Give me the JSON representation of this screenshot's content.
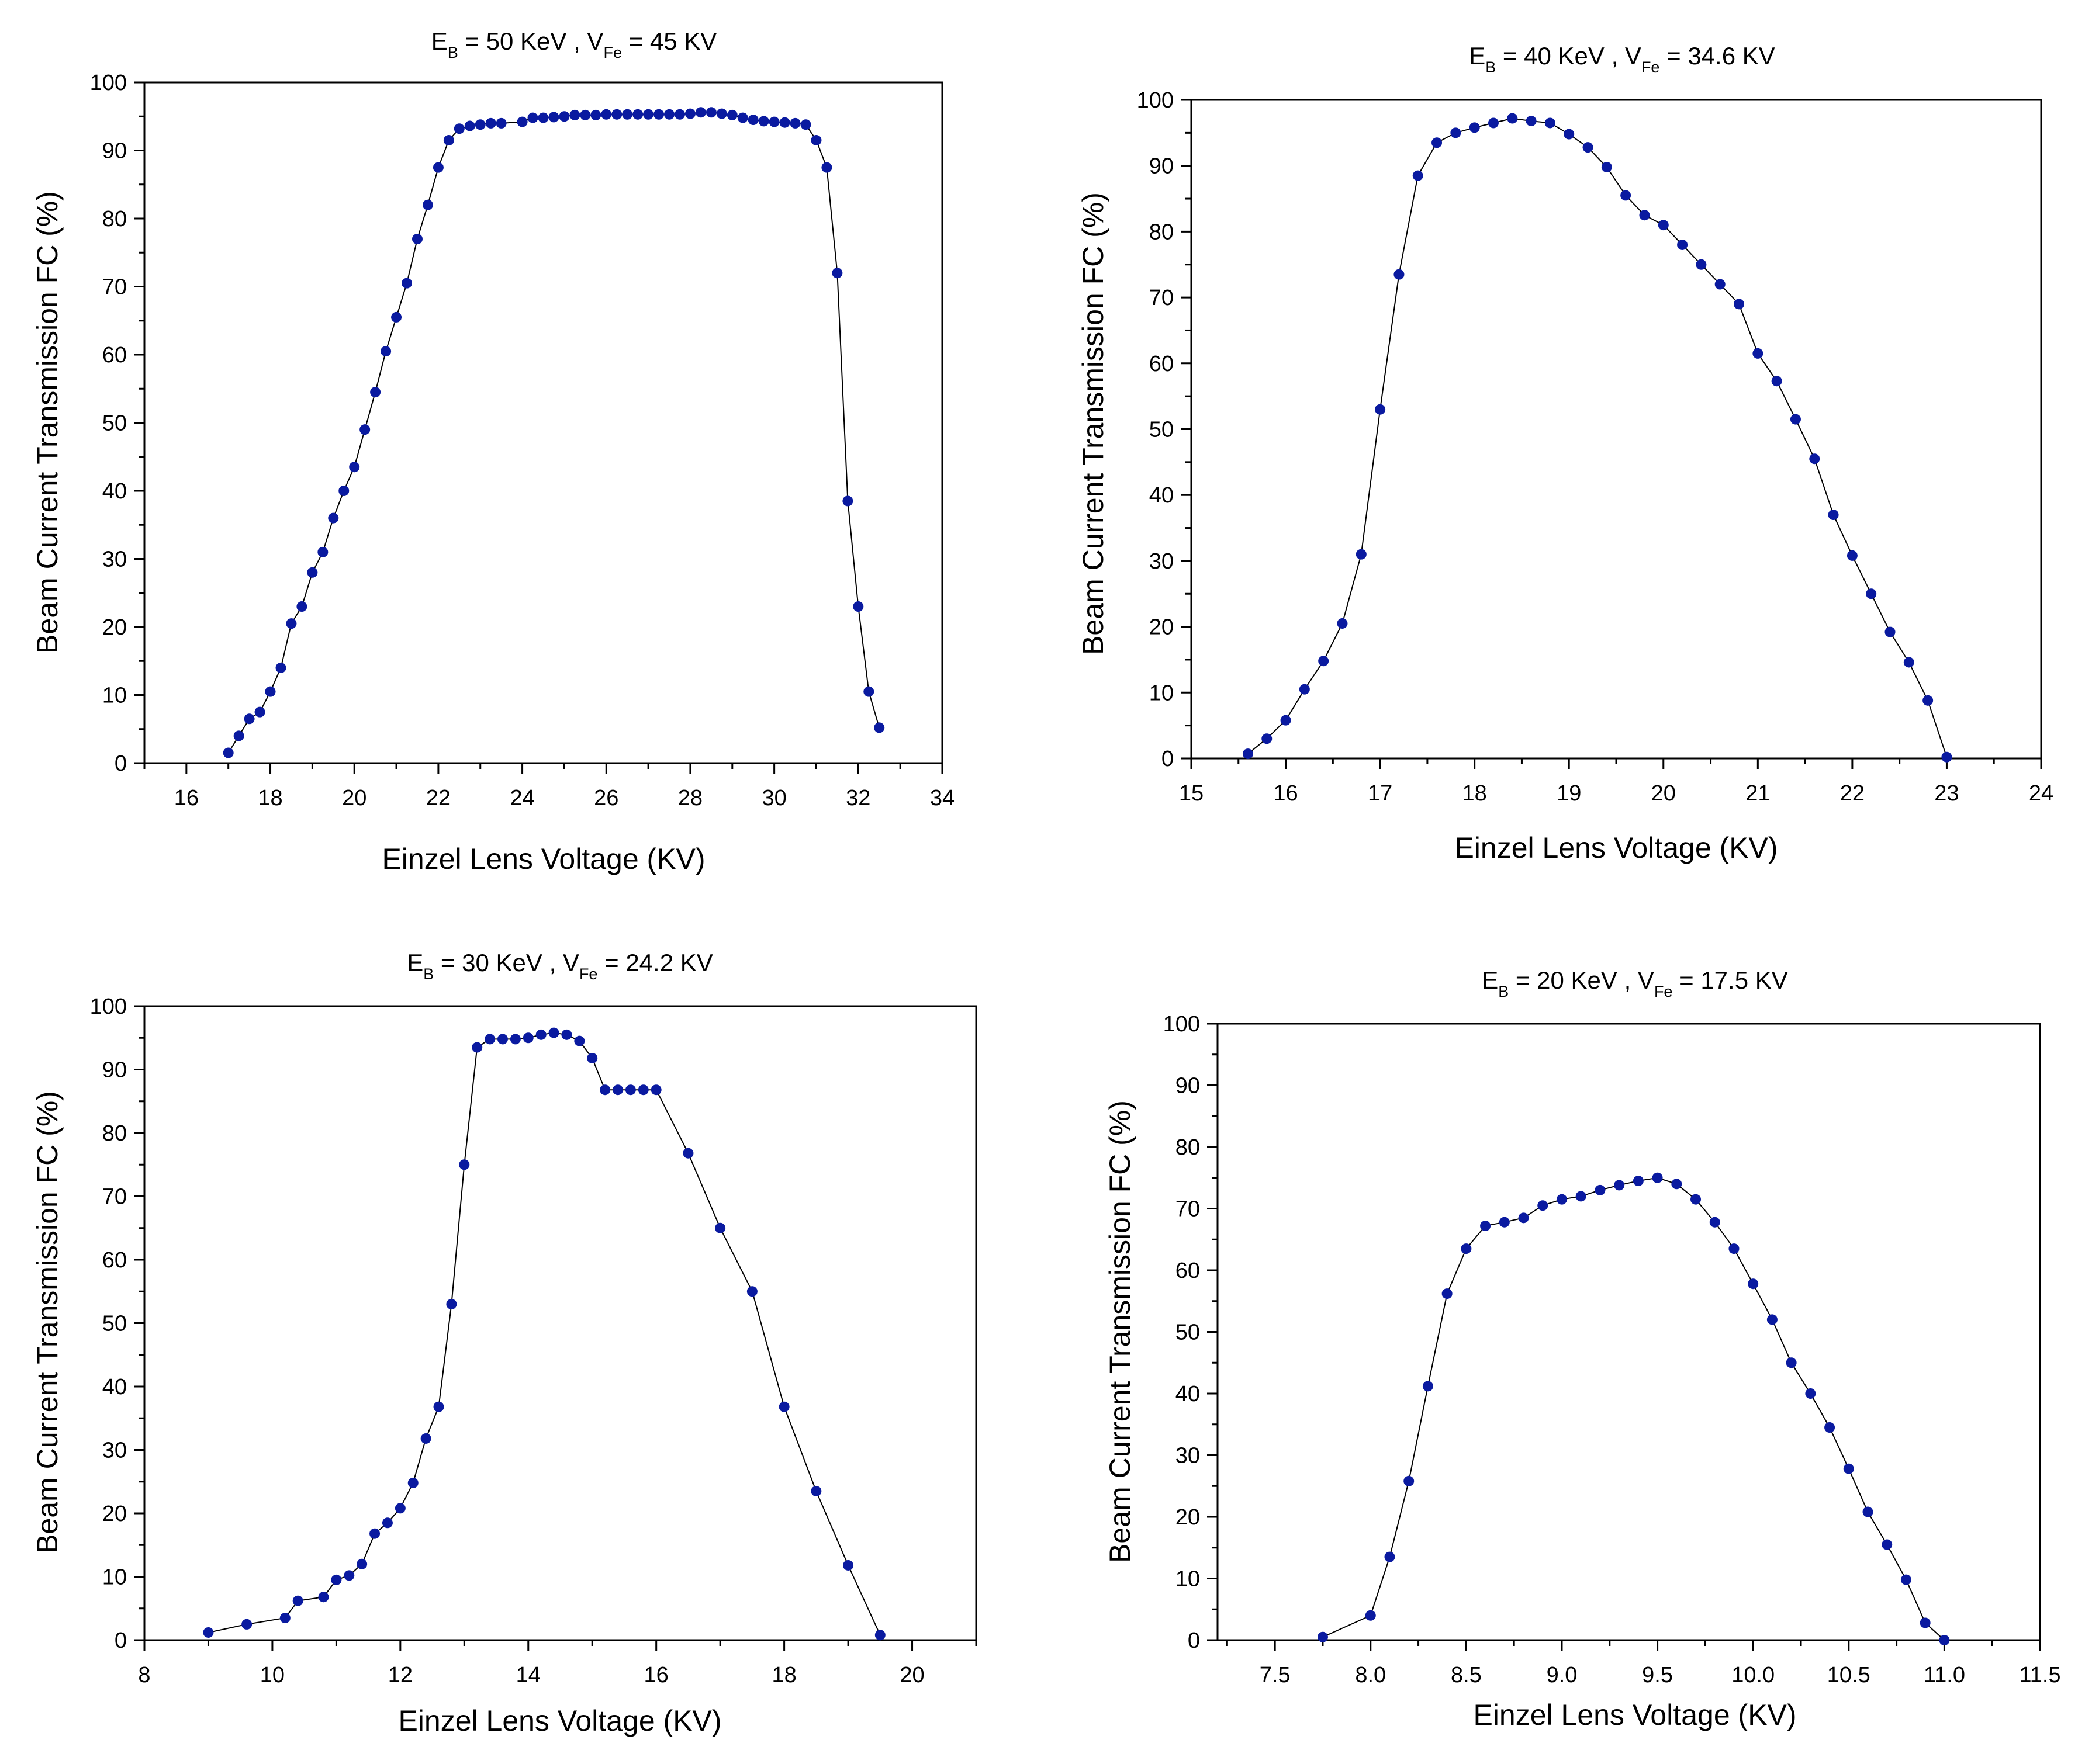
{
  "figure": {
    "marker_color": "#0a1aa0",
    "line_color": "#000000"
  },
  "chart_data": [
    {
      "type": "line",
      "title": {
        "main": "E",
        "sub1": "B",
        "mid": " = 50 KeV , V",
        "sub2": "Fe",
        "tail": " = 45 KV"
      },
      "xlabel": "Einzel Lens Voltage (KV)",
      "ylabel": "Beam Current Transmission FC (%)",
      "xlim": [
        15,
        34
      ],
      "ylim": [
        0,
        100
      ],
      "xticks": [
        16,
        18,
        20,
        22,
        24,
        26,
        28,
        30,
        32,
        34
      ],
      "xtick_labels": [
        "16",
        "18",
        "20",
        "22",
        "24",
        "26",
        "28",
        "30",
        "32",
        "34"
      ],
      "yticks": [
        0,
        10,
        20,
        30,
        40,
        50,
        60,
        70,
        80,
        90,
        100
      ],
      "ytick_labels": [
        "0",
        "10",
        "20",
        "30",
        "40",
        "50",
        "60",
        "70",
        "80",
        "90",
        "100"
      ],
      "x": [
        17.0,
        17.25,
        17.5,
        17.75,
        18.0,
        18.25,
        18.5,
        18.75,
        19.0,
        19.25,
        19.5,
        19.75,
        20.0,
        20.25,
        20.5,
        20.75,
        21.0,
        21.25,
        21.5,
        21.75,
        22.0,
        22.25,
        22.5,
        22.75,
        23.0,
        23.25,
        23.5,
        24.0,
        24.25,
        24.5,
        24.75,
        25.0,
        25.25,
        25.5,
        25.75,
        26.0,
        26.25,
        26.5,
        26.75,
        27.0,
        27.25,
        27.5,
        27.75,
        28.0,
        28.25,
        28.5,
        28.75,
        29.0,
        29.25,
        29.5,
        29.75,
        30.0,
        30.25,
        30.5,
        30.75,
        31.0,
        31.25,
        31.5,
        31.75,
        32.0,
        32.25,
        32.5
      ],
      "y": [
        1.5,
        4,
        6.5,
        7.5,
        10.5,
        14,
        20.5,
        23,
        28,
        31,
        36,
        40,
        43.5,
        49,
        54.5,
        60.5,
        65.5,
        70.5,
        77,
        82,
        87.5,
        91.5,
        93.2,
        93.6,
        93.8,
        94,
        94,
        94.2,
        94.8,
        94.8,
        94.9,
        95,
        95.2,
        95.2,
        95.2,
        95.3,
        95.3,
        95.3,
        95.3,
        95.3,
        95.3,
        95.3,
        95.3,
        95.4,
        95.6,
        95.6,
        95.4,
        95.2,
        94.8,
        94.5,
        94.3,
        94.2,
        94.1,
        94,
        93.8,
        91.5,
        87.5,
        72,
        38.5,
        23,
        10.5,
        5.2
      ]
    },
    {
      "type": "line",
      "title": {
        "main": "E",
        "sub1": "B",
        "mid": " = 40 KeV , V",
        "sub2": "Fe",
        "tail": " = 34.6 KV"
      },
      "xlabel": "Einzel Lens Voltage (KV)",
      "ylabel": "Beam Current Transmission FC (%)",
      "xlim": [
        15,
        24
      ],
      "ylim": [
        0,
        100
      ],
      "xticks": [
        15,
        16,
        17,
        18,
        19,
        20,
        21,
        22,
        23,
        24
      ],
      "xtick_labels": [
        "15",
        "16",
        "17",
        "18",
        "19",
        "20",
        "21",
        "22",
        "23",
        "24"
      ],
      "yticks": [
        0,
        10,
        20,
        30,
        40,
        50,
        60,
        70,
        80,
        90,
        100
      ],
      "ytick_labels": [
        "0",
        "10",
        "20",
        "30",
        "40",
        "50",
        "60",
        "70",
        "80",
        "90",
        "100"
      ],
      "x": [
        15.6,
        15.8,
        16.0,
        16.2,
        16.4,
        16.6,
        16.8,
        17.0,
        17.2,
        17.4,
        17.6,
        17.8,
        18.0,
        18.2,
        18.4,
        18.6,
        18.8,
        19.0,
        19.2,
        19.4,
        19.6,
        19.8,
        20.0,
        20.2,
        20.4,
        20.6,
        20.8,
        21.0,
        21.2,
        21.4,
        21.6,
        21.8,
        22.0,
        22.2,
        22.4,
        22.6,
        22.8,
        23.0
      ],
      "y": [
        0.7,
        3,
        5.8,
        10.5,
        14.8,
        20.5,
        31,
        53,
        73.5,
        88.5,
        93.5,
        95,
        95.8,
        96.5,
        97.2,
        96.8,
        96.5,
        94.8,
        92.8,
        89.8,
        85.5,
        82.5,
        81,
        78,
        75,
        72,
        69,
        61.5,
        57.3,
        51.5,
        45.5,
        37,
        30.8,
        25,
        19.2,
        14.6,
        8.8,
        0.2
      ]
    },
    {
      "type": "line",
      "title": {
        "main": "E",
        "sub1": "B",
        "mid": " = 30 KeV , V",
        "sub2": "Fe",
        "tail": " = 24.2 KV"
      },
      "xlabel": "Einzel Lens Voltage (KV)",
      "ylabel": "Beam Current Transmission FC (%)",
      "xlim": [
        8,
        21
      ],
      "ylim": [
        0,
        100
      ],
      "xticks": [
        8,
        10,
        12,
        14,
        16,
        18,
        20
      ],
      "xtick_labels": [
        "8",
        "10",
        "12",
        "14",
        "16",
        "18",
        "20"
      ],
      "yticks": [
        0,
        10,
        20,
        30,
        40,
        50,
        60,
        70,
        80,
        90,
        100
      ],
      "ytick_labels": [
        "0",
        "10",
        "20",
        "30",
        "40",
        "50",
        "60",
        "70",
        "80",
        "90",
        "100"
      ],
      "x": [
        9.0,
        9.6,
        10.2,
        10.4,
        10.8,
        11.0,
        11.2,
        11.4,
        11.6,
        11.8,
        12.0,
        12.2,
        12.4,
        12.6,
        12.8,
        13.0,
        13.2,
        13.4,
        13.6,
        13.8,
        14.0,
        14.2,
        14.4,
        14.6,
        14.8,
        15.0,
        15.2,
        15.4,
        15.6,
        15.8,
        16.0,
        16.5,
        17.0,
        17.5,
        18.0,
        18.5,
        19.0,
        19.5
      ],
      "y": [
        1.2,
        2.5,
        3.5,
        6.2,
        6.8,
        9.5,
        10.2,
        12,
        16.8,
        18.5,
        20.8,
        24.8,
        31.8,
        36.8,
        53,
        75,
        93.5,
        94.8,
        94.8,
        94.8,
        95,
        95.5,
        95.8,
        95.5,
        94.5,
        91.8,
        86.8,
        86.8,
        86.8,
        86.8,
        86.8,
        76.8,
        65,
        55,
        36.8,
        23.5,
        11.8,
        0.8
      ]
    },
    {
      "type": "line",
      "title": {
        "main": "E",
        "sub1": "B",
        "mid": " = 20 KeV , V",
        "sub2": "Fe",
        "tail": " = 17.5 KV"
      },
      "xlabel": "Einzel Lens Voltage (KV)",
      "ylabel": "Beam Current Transmission FC (%)",
      "xlim": [
        7.2,
        11.5
      ],
      "ylim": [
        0,
        100
      ],
      "xticks": [
        7.5,
        8.0,
        8.5,
        9.0,
        9.5,
        10.0,
        10.5,
        11.0,
        11.5
      ],
      "xtick_labels": [
        "7.5",
        "8.0",
        "8.5",
        "9.0",
        "9.5",
        "10.0",
        "10.5",
        "11.0",
        "11.5"
      ],
      "yticks": [
        0,
        10,
        20,
        30,
        40,
        50,
        60,
        70,
        80,
        90,
        100
      ],
      "ytick_labels": [
        "0",
        "10",
        "20",
        "30",
        "40",
        "50",
        "60",
        "70",
        "80",
        "90",
        "100"
      ],
      "x": [
        7.75,
        8.0,
        8.1,
        8.2,
        8.3,
        8.4,
        8.5,
        8.6,
        8.7,
        8.8,
        8.9,
        9.0,
        9.1,
        9.2,
        9.3,
        9.4,
        9.5,
        9.6,
        9.7,
        9.8,
        9.9,
        10.0,
        10.1,
        10.2,
        10.3,
        10.4,
        10.5,
        10.6,
        10.7,
        10.8,
        10.9,
        11.0
      ],
      "y": [
        0.5,
        4,
        13.5,
        25.8,
        41.2,
        56.2,
        63.5,
        67.2,
        67.8,
        68.5,
        70.5,
        71.5,
        72,
        73,
        73.8,
        74.5,
        75,
        74,
        71.5,
        67.8,
        63.5,
        57.8,
        52,
        45,
        40,
        34.5,
        27.8,
        20.8,
        15.5,
        9.8,
        2.8,
        0
      ]
    }
  ]
}
